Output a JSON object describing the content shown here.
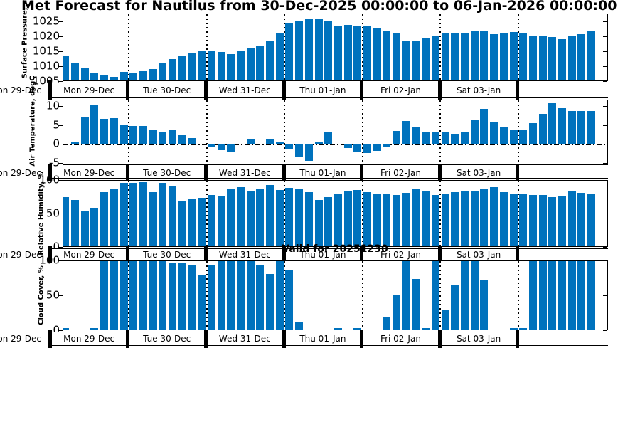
{
  "title": "Met Forecast for Nautilus from 30-Dec-2025 00:00:00 to 06-Jan-2026 00:00:00",
  "annotation": "Valid for 20251230",
  "bar_color": "#0072BD",
  "timeline": {
    "day_labels": [
      "Mon 29-Dec",
      "Tue 30-Dec",
      "Wed 31-Dec",
      "Thu 01-Jan",
      "Fri 02-Jan",
      "Sat 03-Jan",
      ""
    ],
    "clipped_left_label": "Mon 29-Dec"
  },
  "chart_data": [
    {
      "type": "bar",
      "id": "pressure",
      "ylabel": "Surface Pressure, mbar",
      "yticks": [
        1025,
        1020,
        1015,
        1010,
        1005
      ],
      "ylim": [
        1005,
        1027.6
      ],
      "baseline": 1005,
      "zero_line": false,
      "values": [
        1013.6,
        1011.4,
        1009.8,
        1007.9,
        1007.1,
        1006.6,
        1008.3,
        1008.1,
        1008.6,
        1009.4,
        1011.2,
        1012.6,
        1013.6,
        1014.8,
        1015.5,
        1015.2,
        1014.9,
        1014.4,
        1015.5,
        1016.5,
        1016.8,
        1018.6,
        1021.3,
        1024.6,
        1025.5,
        1025.9,
        1026.3,
        1025.2,
        1023.8,
        1024.0,
        1023.6,
        1023.8,
        1022.8,
        1021.9,
        1021.2,
        1018.5,
        1018.6,
        1019.8,
        1020.5,
        1021.2,
        1021.5,
        1021.5,
        1022.1,
        1021.8,
        1020.9,
        1021.2,
        1021.7,
        1021.2,
        1020.3,
        1020.3,
        1020.0,
        1019.4,
        1020.5,
        1020.9,
        1021.9
      ]
    },
    {
      "type": "bar",
      "id": "temperature",
      "ylabel": "Air Temperature, degC",
      "yticks": [
        10,
        5,
        0,
        -5
      ],
      "ylim": [
        -5.66,
        11.7
      ],
      "baseline": 0,
      "zero_line": true,
      "values": [
        0,
        0.7,
        7.4,
        10.6,
        6.8,
        7.0,
        5.2,
        4.9,
        4.9,
        3.9,
        3.5,
        3.7,
        2.4,
        1.7,
        0,
        -0.8,
        -1.5,
        -2.0,
        0,
        1.6,
        0.2,
        1.6,
        0.7,
        -1.2,
        -3.3,
        -4.3,
        0.5,
        3.3,
        0,
        -0.9,
        -1.8,
        -2.3,
        -1.7,
        -0.7,
        3.6,
        6.3,
        4.5,
        3.3,
        3.4,
        3.4,
        2.8,
        3.4,
        6.6,
        9.5,
        5.8,
        4.5,
        3.9,
        3.9,
        5.6,
        8.2,
        11.0,
        9.7,
        8.9,
        8.9,
        8.9
      ]
    },
    {
      "type": "bar",
      "id": "humidity",
      "ylabel": "Relative Humidity, %",
      "yticks": [
        100,
        50,
        0
      ],
      "ylim": [
        0,
        100
      ],
      "baseline": 0,
      "zero_line": false,
      "values": [
        76,
        71,
        54,
        60,
        83,
        88,
        97,
        97,
        98,
        83,
        97,
        93,
        69,
        72,
        75,
        79,
        78,
        88,
        91,
        85,
        88,
        94,
        86,
        89,
        87,
        83,
        71,
        76,
        80,
        84,
        86,
        83,
        81,
        80,
        79,
        82,
        88,
        85,
        79,
        81,
        83,
        85,
        85,
        87,
        90,
        83,
        80,
        80,
        79,
        79,
        76,
        78,
        84,
        82,
        80
      ]
    },
    {
      "type": "bar",
      "id": "cloud-cover",
      "ylabel": "Cloud Cover, %",
      "yticks": [
        100,
        50,
        0
      ],
      "ylim": [
        0,
        100
      ],
      "baseline": 0,
      "zero_line": false,
      "values": [
        4,
        2,
        0,
        4,
        100,
        100,
        100,
        100,
        100,
        100,
        100,
        98,
        97,
        94,
        80,
        94,
        100,
        100,
        100,
        100,
        94,
        82,
        100,
        88,
        13,
        2,
        0,
        0,
        4,
        2,
        4,
        2,
        2,
        20,
        52,
        100,
        75,
        4,
        100,
        30,
        65,
        100,
        100,
        73,
        0,
        0,
        4,
        4,
        100,
        100,
        100,
        100,
        100,
        100,
        100
      ]
    }
  ]
}
